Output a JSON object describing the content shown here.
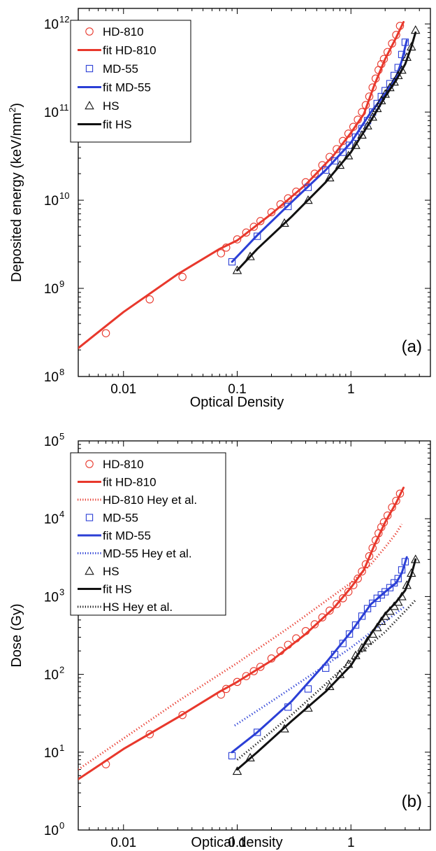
{
  "colors": {
    "hd810": "#e8382c",
    "md55": "#2b3fd6",
    "hs": "#111111"
  },
  "chart_data": [
    {
      "panel_label": "(a)",
      "type": "scatter",
      "xlabel": "Optical Density",
      "ylabel_main": "Deposited energy (keV/mm",
      "ylabel_sup": "2",
      "ylabel_tail": ")",
      "x_scale": "log",
      "y_scale": "log",
      "xlim": [
        0.004,
        5
      ],
      "ylim": [
        100000000,
        1500000000000
      ],
      "x_ticks": [
        {
          "v": 0.01,
          "label": "0.01"
        },
        {
          "v": 0.1,
          "label": "0.1"
        },
        {
          "v": 1,
          "label": "1"
        }
      ],
      "y_ticks": [
        {
          "v": 100000000,
          "base": "10",
          "exp": "8"
        },
        {
          "v": 1000000000,
          "base": "10",
          "exp": "9"
        },
        {
          "v": 10000000000,
          "base": "10",
          "exp": "10"
        },
        {
          "v": 100000000000,
          "base": "10",
          "exp": "11"
        },
        {
          "v": 1000000000000,
          "base": "10",
          "exp": "12"
        }
      ],
      "legend_position": "top-left",
      "series": [
        {
          "name": "HD-810",
          "kind": "points",
          "marker": "circle",
          "color_key": "hd810",
          "x": [
            0.007,
            0.017,
            0.033,
            0.072,
            0.08,
            0.1,
            0.12,
            0.14,
            0.16,
            0.2,
            0.24,
            0.28,
            0.33,
            0.4,
            0.48,
            0.56,
            0.65,
            0.75,
            0.85,
            0.95,
            1.05,
            1.15,
            1.25,
            1.35,
            1.45,
            1.55,
            1.65,
            1.75,
            1.85,
            1.95,
            2.1,
            2.3,
            2.5,
            2.7
          ],
          "y": [
            310000000,
            750000000,
            1350000000,
            2500000000,
            2900000000,
            3600000000,
            4300000000,
            5000000000,
            5800000000,
            7300000000,
            9000000000,
            10500000000,
            12500000000,
            16000000000,
            20000000000,
            25000000000,
            31000000000,
            38000000000,
            47000000000,
            57000000000,
            68000000000,
            82000000000,
            100000000000,
            120000000000,
            150000000000,
            190000000000,
            240000000000,
            300000000000,
            350000000000,
            400000000000,
            480000000000,
            600000000000,
            750000000000,
            950000000000
          ]
        },
        {
          "name": "fit HD-810",
          "kind": "line",
          "style": "solid",
          "color_key": "hd810",
          "x": [
            0.004,
            0.01,
            0.03,
            0.07,
            0.1,
            0.2,
            0.4,
            0.7,
            1.0,
            1.3,
            1.6,
            2.0,
            2.5,
            2.9
          ],
          "y": [
            210000000,
            540000000,
            1450000000,
            2800000000,
            3500000000,
            7000000000,
            15000000000,
            32000000000,
            58000000000,
            95000000000,
            200000000000,
            400000000000,
            700000000000,
            1050000000000
          ]
        },
        {
          "name": "MD-55",
          "kind": "points",
          "marker": "square",
          "color_key": "md55",
          "x": [
            0.09,
            0.15,
            0.28,
            0.42,
            0.6,
            0.72,
            0.85,
            0.97,
            1.1,
            1.25,
            1.4,
            1.55,
            1.7,
            1.85,
            2.0,
            2.2,
            2.4,
            2.6,
            2.8,
            3.0
          ],
          "y": [
            2000000000,
            3900000000,
            8500000000,
            14000000000,
            22000000000,
            28000000000,
            35000000000,
            42000000000,
            52000000000,
            65000000000,
            80000000000,
            100000000000,
            125000000000,
            150000000000,
            175000000000,
            210000000000,
            260000000000,
            320000000000,
            450000000000,
            620000000000
          ]
        },
        {
          "name": "fit MD-55",
          "kind": "line",
          "style": "solid",
          "color_key": "md55",
          "x": [
            0.09,
            0.15,
            0.3,
            0.6,
            1.0,
            1.5,
            2.0,
            2.5,
            2.8,
            3.1
          ],
          "y": [
            2000000000,
            4000000000,
            9500000000,
            22000000000,
            45000000000,
            100000000000,
            160000000000,
            250000000000,
            380000000000,
            650000000000
          ]
        },
        {
          "name": "HS",
          "kind": "points",
          "marker": "triangle",
          "color_key": "hs",
          "x": [
            0.1,
            0.13,
            0.26,
            0.42,
            0.65,
            0.8,
            0.95,
            1.1,
            1.25,
            1.4,
            1.55,
            1.7,
            1.85,
            2.0,
            2.2,
            2.4,
            2.6,
            2.8,
            3.1,
            3.4,
            3.7
          ],
          "y": [
            1600000000,
            2300000000,
            5500000000,
            10000000000,
            18000000000,
            25000000000,
            32000000000,
            42000000000,
            55000000000,
            70000000000,
            88000000000,
            110000000000,
            135000000000,
            160000000000,
            190000000000,
            220000000000,
            260000000000,
            300000000000,
            420000000000,
            550000000000,
            850000000000
          ]
        },
        {
          "name": "fit HS",
          "kind": "line",
          "style": "solid",
          "color_key": "hs",
          "x": [
            0.1,
            0.15,
            0.3,
            0.6,
            1.0,
            1.5,
            2.0,
            2.5,
            3.0,
            3.4,
            3.7
          ],
          "y": [
            1600000000,
            2800000000,
            6500000000,
            16000000000,
            35000000000,
            80000000000,
            150000000000,
            230000000000,
            350000000000,
            550000000000,
            800000000000
          ]
        }
      ]
    },
    {
      "panel_label": "(b)",
      "type": "scatter",
      "xlabel": "Optical density",
      "ylabel_main": "Dose (Gy)",
      "x_scale": "log",
      "y_scale": "log",
      "xlim": [
        0.004,
        5
      ],
      "ylim": [
        1,
        100000
      ],
      "x_ticks": [
        {
          "v": 0.01,
          "label": "0.01"
        },
        {
          "v": 0.1,
          "label": "0.1"
        },
        {
          "v": 1,
          "label": "1"
        }
      ],
      "y_ticks": [
        {
          "v": 1,
          "base": "10",
          "exp": "0"
        },
        {
          "v": 10,
          "base": "10",
          "exp": "1"
        },
        {
          "v": 100,
          "base": "10",
          "exp": "2"
        },
        {
          "v": 1000,
          "base": "10",
          "exp": "3"
        },
        {
          "v": 10000,
          "base": "10",
          "exp": "4"
        },
        {
          "v": 100000,
          "base": "10",
          "exp": "5"
        }
      ],
      "legend_position": "top-left",
      "series": [
        {
          "name": "HD-810",
          "kind": "points",
          "marker": "circle",
          "color_key": "hd810",
          "x": [
            0.007,
            0.017,
            0.033,
            0.072,
            0.08,
            0.1,
            0.12,
            0.14,
            0.16,
            0.2,
            0.24,
            0.28,
            0.33,
            0.4,
            0.48,
            0.56,
            0.65,
            0.75,
            0.85,
            0.95,
            1.05,
            1.15,
            1.25,
            1.35,
            1.45,
            1.55,
            1.65,
            1.75,
            1.85,
            1.95,
            2.1,
            2.3,
            2.5,
            2.7
          ],
          "y": [
            7,
            17,
            30,
            55,
            65,
            80,
            95,
            110,
            125,
            160,
            200,
            240,
            290,
            360,
            440,
            540,
            660,
            800,
            950,
            1150,
            1400,
            1700,
            2100,
            2600,
            3300,
            4200,
            5300,
            6500,
            7800,
            9000,
            11000,
            14000,
            17000,
            21000
          ]
        },
        {
          "name": "fit HD-810",
          "kind": "line",
          "style": "solid",
          "color_key": "hd810",
          "x": [
            0.004,
            0.01,
            0.03,
            0.07,
            0.1,
            0.2,
            0.4,
            0.7,
            1.0,
            1.3,
            1.6,
            2.0,
            2.5,
            2.9
          ],
          "y": [
            4.5,
            11,
            28,
            60,
            80,
            150,
            330,
            700,
            1300,
            2200,
            4500,
            9000,
            16000,
            25000
          ]
        },
        {
          "name": "HD-810 Hey et al.",
          "kind": "line",
          "style": "dotted",
          "color_key": "hd810",
          "x": [
            0.004,
            0.01,
            0.03,
            0.1,
            0.3,
            1.0,
            1.5,
            2.0,
            2.5,
            2.8
          ],
          "y": [
            6,
            15,
            45,
            140,
            420,
            1500,
            2600,
            4300,
            6500,
            8500
          ]
        },
        {
          "name": "MD-55",
          "kind": "points",
          "marker": "square",
          "color_key": "md55",
          "x": [
            0.09,
            0.15,
            0.28,
            0.42,
            0.6,
            0.72,
            0.85,
            0.97,
            1.1,
            1.25,
            1.4,
            1.55,
            1.7,
            1.85,
            2.0,
            2.2,
            2.4,
            2.6,
            2.8,
            3.0
          ],
          "y": [
            9,
            18,
            38,
            65,
            120,
            180,
            250,
            330,
            430,
            560,
            700,
            820,
            950,
            1050,
            1150,
            1300,
            1500,
            1700,
            2200,
            2800
          ]
        },
        {
          "name": "fit MD-55",
          "kind": "line",
          "style": "solid",
          "color_key": "md55",
          "x": [
            0.09,
            0.15,
            0.3,
            0.6,
            1.0,
            1.5,
            2.0,
            2.5,
            2.8,
            3.1
          ],
          "y": [
            10,
            18,
            45,
            140,
            350,
            800,
            1150,
            1500,
            2000,
            3200
          ]
        },
        {
          "name": "MD-55 Hey et al.",
          "kind": "line",
          "style": "dotted",
          "color_key": "md55",
          "x": [
            0.095,
            0.2,
            0.5,
            1.0,
            2.0,
            3.0
          ],
          "y": [
            22,
            45,
            110,
            220,
            480,
            750
          ]
        },
        {
          "name": "HS",
          "kind": "points",
          "marker": "triangle",
          "color_key": "hs",
          "x": [
            0.1,
            0.13,
            0.26,
            0.42,
            0.65,
            0.8,
            0.95,
            1.1,
            1.25,
            1.4,
            1.55,
            1.7,
            1.85,
            2.0,
            2.2,
            2.4,
            2.6,
            2.8,
            3.1,
            3.4,
            3.7
          ],
          "y": [
            5.7,
            8.5,
            20,
            37,
            70,
            100,
            135,
            175,
            220,
            270,
            330,
            400,
            480,
            560,
            650,
            750,
            850,
            1000,
            1400,
            2000,
            3000
          ]
        },
        {
          "name": "fit HS",
          "kind": "line",
          "style": "solid",
          "color_key": "hs",
          "x": [
            0.1,
            0.15,
            0.3,
            0.6,
            1.0,
            1.5,
            2.0,
            2.5,
            3.0,
            3.4,
            3.7
          ],
          "y": [
            6,
            10,
            25,
            60,
            130,
            330,
            600,
            850,
            1200,
            1900,
            3000
          ]
        },
        {
          "name": "HS Hey et al.",
          "kind": "line",
          "style": "dotted",
          "color_key": "hs",
          "x": [
            0.1,
            0.3,
            0.6,
            1.0,
            2.0,
            3.0,
            3.7
          ],
          "y": [
            8,
            30,
            75,
            150,
            350,
            650,
            900
          ]
        }
      ]
    }
  ]
}
